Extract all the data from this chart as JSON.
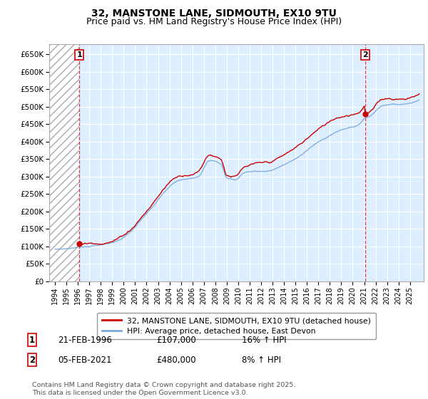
{
  "title_line1": "32, MANSTONE LANE, SIDMOUTH, EX10 9TU",
  "title_line2": "Price paid vs. HM Land Registry's House Price Index (HPI)",
  "title_fontsize": 10,
  "subtitle_fontsize": 9,
  "background_color": "#ffffff",
  "plot_bg_color": "#ddeeff",
  "sale1_date": 1996.13,
  "sale1_price": 107000,
  "sale2_date": 2021.09,
  "sale2_price": 480000,
  "ylim": [
    0,
    680000
  ],
  "xlim_start": 1993.5,
  "xlim_end": 2026.2,
  "hpi_color": "#7aaadd",
  "price_color": "#cc0000",
  "legend_label1": "32, MANSTONE LANE, SIDMOUTH, EX10 9TU (detached house)",
  "legend_label2": "HPI: Average price, detached house, East Devon",
  "ann1_text": "21-FEB-1996",
  "ann1_price": "£107,000",
  "ann1_hpi": "16% ↑ HPI",
  "ann2_text": "05-FEB-2021",
  "ann2_price": "£480,000",
  "ann2_hpi": "8% ↑ HPI",
  "footer_text": "Contains HM Land Registry data © Crown copyright and database right 2025.\nThis data is licensed under the Open Government Licence v3.0.",
  "ytick_labels": [
    "£0",
    "£50K",
    "£100K",
    "£150K",
    "£200K",
    "£250K",
    "£300K",
    "£350K",
    "£400K",
    "£450K",
    "£500K",
    "£550K",
    "£600K",
    "£650K"
  ],
  "ytick_values": [
    0,
    50000,
    100000,
    150000,
    200000,
    250000,
    300000,
    350000,
    400000,
    450000,
    500000,
    550000,
    600000,
    650000
  ],
  "xtick_years": [
    1994,
    1995,
    1996,
    1997,
    1998,
    1999,
    2000,
    2001,
    2002,
    2003,
    2004,
    2005,
    2006,
    2007,
    2008,
    2009,
    2010,
    2011,
    2012,
    2013,
    2014,
    2015,
    2016,
    2017,
    2018,
    2019,
    2020,
    2021,
    2022,
    2023,
    2024,
    2025
  ]
}
